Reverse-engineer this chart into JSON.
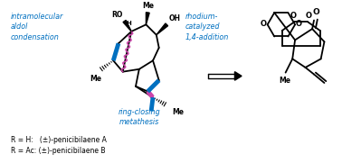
{
  "bg_color": "#ffffff",
  "blue_color": "#0070C0",
  "pink_color": "#CC44AA",
  "black_color": "#000000",
  "annotation_intramolecular": "intramolecular\naldol\ncondensation",
  "annotation_rhodium": "rhodium-\ncatalyzed\n1,4-addition",
  "annotation_ring": "ring-closing\nmetathesis",
  "label_r1": "R = H:   (±)-penicibilaene A",
  "label_r2": "R = Ac: (±)-penicibilaene B",
  "figsize": [
    3.78,
    1.81
  ],
  "dpi": 100
}
